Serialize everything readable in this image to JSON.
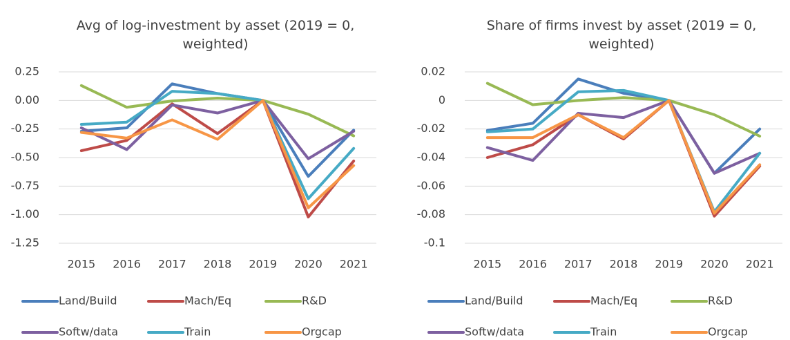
{
  "chart_data": [
    {
      "type": "line",
      "title": "Avg of log-investment by asset (2019 = 0, weighted)",
      "categories": [
        "2015",
        "2016",
        "2017",
        "2018",
        "2019",
        "2020",
        "2021"
      ],
      "ylim": [
        -1.25,
        0.25
      ],
      "yticks": [
        0.25,
        {
          "value": 0,
          "label": "0.00"
        },
        -0.25,
        {
          "value": -0.5,
          "label": "-0.50"
        },
        -0.75,
        {
          "value": -1,
          "label": "-1.00"
        },
        -1.25
      ],
      "grid": true,
      "legend": "bottom",
      "series": [
        {
          "name": "Land/Build",
          "color": "#4a7ebb",
          "values": [
            -0.27,
            -0.24,
            0.145,
            0.06,
            0,
            -0.665,
            -0.26
          ]
        },
        {
          "name": "Mach/Eq",
          "color": "#be4b48",
          "values": [
            -0.44,
            -0.35,
            -0.03,
            -0.29,
            0,
            -1.02,
            -0.53
          ]
        },
        {
          "name": "R&D",
          "color": "#98b954",
          "values": [
            0.13,
            -0.06,
            -0.005,
            0.02,
            0,
            -0.12,
            -0.31
          ]
        },
        {
          "name": "Softw/data",
          "color": "#7d60a0",
          "values": [
            -0.24,
            -0.43,
            -0.04,
            -0.11,
            0,
            -0.51,
            -0.27
          ]
        },
        {
          "name": "Train",
          "color": "#46aac5",
          "values": [
            -0.21,
            -0.19,
            0.08,
            0.06,
            0,
            -0.86,
            -0.42
          ]
        },
        {
          "name": "Orgcap",
          "color": "#f79646",
          "values": [
            -0.28,
            -0.33,
            -0.17,
            -0.34,
            0,
            -0.94,
            -0.57
          ]
        }
      ]
    },
    {
      "type": "line",
      "title": "Share of firms invest by asset (2019 = 0, weighted)",
      "categories": [
        "2015",
        "2016",
        "2017",
        "2018",
        "2019",
        "2020",
        "2021"
      ],
      "ylim": [
        -0.1,
        0.02
      ],
      "yticks": [
        0.02,
        0,
        -0.02,
        -0.04,
        -0.06,
        -0.08,
        -0.1
      ],
      "grid": true,
      "legend": "bottom",
      "series": [
        {
          "name": "Land/Build",
          "color": "#4a7ebb",
          "values": [
            -0.021,
            -0.016,
            0.015,
            0.005,
            0,
            -0.051,
            -0.02
          ]
        },
        {
          "name": "Mach/Eq",
          "color": "#be4b48",
          "values": [
            -0.04,
            -0.031,
            -0.01,
            -0.027,
            0,
            -0.081,
            -0.046
          ]
        },
        {
          "name": "R&D",
          "color": "#98b954",
          "values": [
            0.012,
            -0.003,
            0,
            0.002,
            0,
            -0.01,
            -0.025
          ]
        },
        {
          "name": "Softw/data",
          "color": "#7d60a0",
          "values": [
            -0.033,
            -0.042,
            -0.009,
            -0.012,
            0,
            -0.051,
            -0.037
          ]
        },
        {
          "name": "Train",
          "color": "#46aac5",
          "values": [
            -0.022,
            -0.02,
            0.006,
            0.007,
            0,
            -0.078,
            -0.037
          ]
        },
        {
          "name": "Orgcap",
          "color": "#f79646",
          "values": [
            -0.026,
            -0.026,
            -0.01,
            -0.026,
            0,
            -0.079,
            -0.045
          ]
        }
      ]
    }
  ]
}
